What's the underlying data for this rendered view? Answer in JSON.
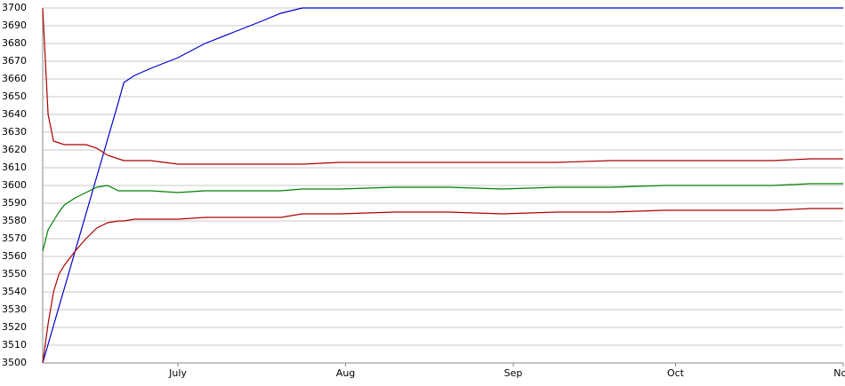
{
  "chart_data": {
    "type": "line",
    "x": [
      0,
      1,
      2,
      3,
      4,
      6,
      8,
      10,
      12,
      14,
      15,
      17,
      20,
      25,
      30,
      35,
      40,
      44,
      48,
      55,
      65,
      75,
      85,
      95,
      105,
      115,
      125,
      135,
      142,
      148
    ],
    "xlim": [
      0,
      148
    ],
    "xticks": [
      {
        "value": 25,
        "label": "July"
      },
      {
        "value": 56,
        "label": "Aug"
      },
      {
        "value": 87,
        "label": "Sep"
      },
      {
        "value": 117,
        "label": "Oct"
      },
      {
        "value": 148,
        "label": "Nov"
      }
    ],
    "ylim": [
      3500,
      3700
    ],
    "yticks": [
      3500,
      3510,
      3520,
      3530,
      3540,
      3550,
      3560,
      3570,
      3580,
      3590,
      3600,
      3610,
      3620,
      3630,
      3640,
      3650,
      3660,
      3670,
      3680,
      3690,
      3700
    ],
    "grid": true,
    "series": [
      {
        "color": "#0000cc",
        "values": [
          3500,
          3510.5,
          3521,
          3531.6,
          3542,
          3563,
          3584,
          3605,
          3626,
          3647,
          3658,
          3662,
          3666,
          3672,
          3680,
          3686,
          3692,
          3697,
          3700,
          3700,
          3700,
          3700,
          3700,
          3700,
          3700,
          3700,
          3700,
          3700,
          3700,
          3700
        ]
      },
      {
        "color": "#aa0000",
        "values": [
          3700,
          3640,
          3625,
          3624,
          3623,
          3623,
          3623,
          3621,
          3617,
          3615,
          3614,
          3614,
          3614,
          3612,
          3612,
          3612,
          3612,
          3612,
          3612,
          3613,
          3613,
          3613,
          3613,
          3613,
          3614,
          3614,
          3614,
          3614,
          3615,
          3615
        ]
      },
      {
        "color": "#008000",
        "values": [
          3563,
          3575,
          3580,
          3585,
          3589,
          3593,
          3596,
          3599,
          3600,
          3597,
          3597,
          3597,
          3597,
          3596,
          3597,
          3597,
          3597,
          3597,
          3598,
          3598,
          3599,
          3599,
          3598,
          3599,
          3599,
          3600,
          3600,
          3600,
          3601,
          3601
        ]
      },
      {
        "color": "#aa0000",
        "values": [
          3500,
          3522,
          3540,
          3550,
          3555,
          3563,
          3570,
          3576,
          3579,
          3580,
          3580,
          3581,
          3581,
          3581,
          3582,
          3582,
          3582,
          3582,
          3584,
          3584,
          3585,
          3585,
          3584,
          3585,
          3585,
          3586,
          3586,
          3586,
          3587,
          3587
        ]
      }
    ]
  }
}
